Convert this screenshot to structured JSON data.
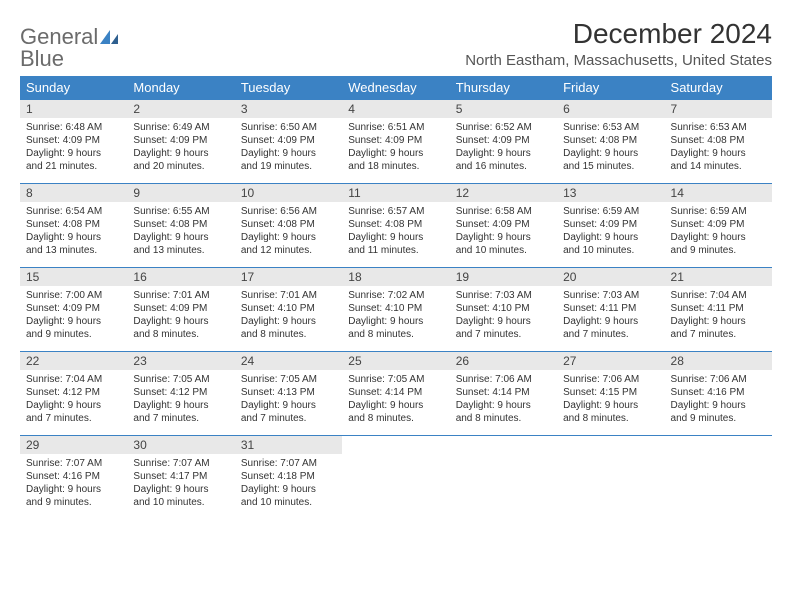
{
  "logo": {
    "word1": "General",
    "word2": "Blue"
  },
  "title": "December 2024",
  "location": "North Eastham, Massachusetts, United States",
  "columns": [
    "Sunday",
    "Monday",
    "Tuesday",
    "Wednesday",
    "Thursday",
    "Friday",
    "Saturday"
  ],
  "colors": {
    "header_bg": "#3b82c4",
    "header_fg": "#ffffff",
    "daynum_bg": "#e8e8e8",
    "border": "#3b82c4",
    "logo_gray": "#6b6b6b",
    "logo_blue": "#3b82c4"
  },
  "weeks": [
    [
      {
        "n": "1",
        "sr": "Sunrise: 6:48 AM",
        "ss": "Sunset: 4:09 PM",
        "d1": "Daylight: 9 hours",
        "d2": "and 21 minutes."
      },
      {
        "n": "2",
        "sr": "Sunrise: 6:49 AM",
        "ss": "Sunset: 4:09 PM",
        "d1": "Daylight: 9 hours",
        "d2": "and 20 minutes."
      },
      {
        "n": "3",
        "sr": "Sunrise: 6:50 AM",
        "ss": "Sunset: 4:09 PM",
        "d1": "Daylight: 9 hours",
        "d2": "and 19 minutes."
      },
      {
        "n": "4",
        "sr": "Sunrise: 6:51 AM",
        "ss": "Sunset: 4:09 PM",
        "d1": "Daylight: 9 hours",
        "d2": "and 18 minutes."
      },
      {
        "n": "5",
        "sr": "Sunrise: 6:52 AM",
        "ss": "Sunset: 4:09 PM",
        "d1": "Daylight: 9 hours",
        "d2": "and 16 minutes."
      },
      {
        "n": "6",
        "sr": "Sunrise: 6:53 AM",
        "ss": "Sunset: 4:08 PM",
        "d1": "Daylight: 9 hours",
        "d2": "and 15 minutes."
      },
      {
        "n": "7",
        "sr": "Sunrise: 6:53 AM",
        "ss": "Sunset: 4:08 PM",
        "d1": "Daylight: 9 hours",
        "d2": "and 14 minutes."
      }
    ],
    [
      {
        "n": "8",
        "sr": "Sunrise: 6:54 AM",
        "ss": "Sunset: 4:08 PM",
        "d1": "Daylight: 9 hours",
        "d2": "and 13 minutes."
      },
      {
        "n": "9",
        "sr": "Sunrise: 6:55 AM",
        "ss": "Sunset: 4:08 PM",
        "d1": "Daylight: 9 hours",
        "d2": "and 13 minutes."
      },
      {
        "n": "10",
        "sr": "Sunrise: 6:56 AM",
        "ss": "Sunset: 4:08 PM",
        "d1": "Daylight: 9 hours",
        "d2": "and 12 minutes."
      },
      {
        "n": "11",
        "sr": "Sunrise: 6:57 AM",
        "ss": "Sunset: 4:08 PM",
        "d1": "Daylight: 9 hours",
        "d2": "and 11 minutes."
      },
      {
        "n": "12",
        "sr": "Sunrise: 6:58 AM",
        "ss": "Sunset: 4:09 PM",
        "d1": "Daylight: 9 hours",
        "d2": "and 10 minutes."
      },
      {
        "n": "13",
        "sr": "Sunrise: 6:59 AM",
        "ss": "Sunset: 4:09 PM",
        "d1": "Daylight: 9 hours",
        "d2": "and 10 minutes."
      },
      {
        "n": "14",
        "sr": "Sunrise: 6:59 AM",
        "ss": "Sunset: 4:09 PM",
        "d1": "Daylight: 9 hours",
        "d2": "and 9 minutes."
      }
    ],
    [
      {
        "n": "15",
        "sr": "Sunrise: 7:00 AM",
        "ss": "Sunset: 4:09 PM",
        "d1": "Daylight: 9 hours",
        "d2": "and 9 minutes."
      },
      {
        "n": "16",
        "sr": "Sunrise: 7:01 AM",
        "ss": "Sunset: 4:09 PM",
        "d1": "Daylight: 9 hours",
        "d2": "and 8 minutes."
      },
      {
        "n": "17",
        "sr": "Sunrise: 7:01 AM",
        "ss": "Sunset: 4:10 PM",
        "d1": "Daylight: 9 hours",
        "d2": "and 8 minutes."
      },
      {
        "n": "18",
        "sr": "Sunrise: 7:02 AM",
        "ss": "Sunset: 4:10 PM",
        "d1": "Daylight: 9 hours",
        "d2": "and 8 minutes."
      },
      {
        "n": "19",
        "sr": "Sunrise: 7:03 AM",
        "ss": "Sunset: 4:10 PM",
        "d1": "Daylight: 9 hours",
        "d2": "and 7 minutes."
      },
      {
        "n": "20",
        "sr": "Sunrise: 7:03 AM",
        "ss": "Sunset: 4:11 PM",
        "d1": "Daylight: 9 hours",
        "d2": "and 7 minutes."
      },
      {
        "n": "21",
        "sr": "Sunrise: 7:04 AM",
        "ss": "Sunset: 4:11 PM",
        "d1": "Daylight: 9 hours",
        "d2": "and 7 minutes."
      }
    ],
    [
      {
        "n": "22",
        "sr": "Sunrise: 7:04 AM",
        "ss": "Sunset: 4:12 PM",
        "d1": "Daylight: 9 hours",
        "d2": "and 7 minutes."
      },
      {
        "n": "23",
        "sr": "Sunrise: 7:05 AM",
        "ss": "Sunset: 4:12 PM",
        "d1": "Daylight: 9 hours",
        "d2": "and 7 minutes."
      },
      {
        "n": "24",
        "sr": "Sunrise: 7:05 AM",
        "ss": "Sunset: 4:13 PM",
        "d1": "Daylight: 9 hours",
        "d2": "and 7 minutes."
      },
      {
        "n": "25",
        "sr": "Sunrise: 7:05 AM",
        "ss": "Sunset: 4:14 PM",
        "d1": "Daylight: 9 hours",
        "d2": "and 8 minutes."
      },
      {
        "n": "26",
        "sr": "Sunrise: 7:06 AM",
        "ss": "Sunset: 4:14 PM",
        "d1": "Daylight: 9 hours",
        "d2": "and 8 minutes."
      },
      {
        "n": "27",
        "sr": "Sunrise: 7:06 AM",
        "ss": "Sunset: 4:15 PM",
        "d1": "Daylight: 9 hours",
        "d2": "and 8 minutes."
      },
      {
        "n": "28",
        "sr": "Sunrise: 7:06 AM",
        "ss": "Sunset: 4:16 PM",
        "d1": "Daylight: 9 hours",
        "d2": "and 9 minutes."
      }
    ],
    [
      {
        "n": "29",
        "sr": "Sunrise: 7:07 AM",
        "ss": "Sunset: 4:16 PM",
        "d1": "Daylight: 9 hours",
        "d2": "and 9 minutes."
      },
      {
        "n": "30",
        "sr": "Sunrise: 7:07 AM",
        "ss": "Sunset: 4:17 PM",
        "d1": "Daylight: 9 hours",
        "d2": "and 10 minutes."
      },
      {
        "n": "31",
        "sr": "Sunrise: 7:07 AM",
        "ss": "Sunset: 4:18 PM",
        "d1": "Daylight: 9 hours",
        "d2": "and 10 minutes."
      },
      null,
      null,
      null,
      null
    ]
  ]
}
